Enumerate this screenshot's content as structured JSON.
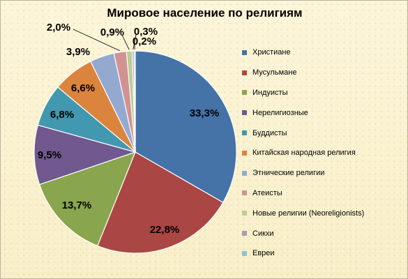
{
  "chart_data": {
    "type": "pie",
    "title": "Мировое население по религиям",
    "legend_position": "right",
    "start_angle_deg": 0,
    "direction": "clockwise",
    "slices": [
      {
        "name": "Христиане",
        "value": 33.3,
        "label": "33,3%",
        "color": "#4572a7"
      },
      {
        "name": "Мусульмане",
        "value": 22.8,
        "label": "22,8%",
        "color": "#aa4643"
      },
      {
        "name": "Индуисты",
        "value": 13.7,
        "label": "13,7%",
        "color": "#89a54e"
      },
      {
        "name": "Нерелигиозные",
        "value": 9.5,
        "label": "9,5%",
        "color": "#71588f"
      },
      {
        "name": "Буддисты",
        "value": 6.8,
        "label": "6,8%",
        "color": "#4198af"
      },
      {
        "name": "Китайская народная религия",
        "value": 6.6,
        "label": "6,6%",
        "color": "#db843d"
      },
      {
        "name": "Этнические религии",
        "value": 3.9,
        "label": "3,9%",
        "color": "#93a9cf"
      },
      {
        "name": "Атеисты",
        "value": 2.0,
        "label": "2,0%",
        "color": "#d19392"
      },
      {
        "name": "Новые религии (Neoreligionists)",
        "value": 0.9,
        "label": "0,9%",
        "color": "#b9cd96"
      },
      {
        "name": "Сикхи",
        "value": 0.3,
        "label": "0,3%",
        "color": "#a99bbd"
      },
      {
        "name": "Евреи",
        "value": 0.2,
        "label": "0,2%",
        "color": "#91c3d5"
      }
    ]
  }
}
